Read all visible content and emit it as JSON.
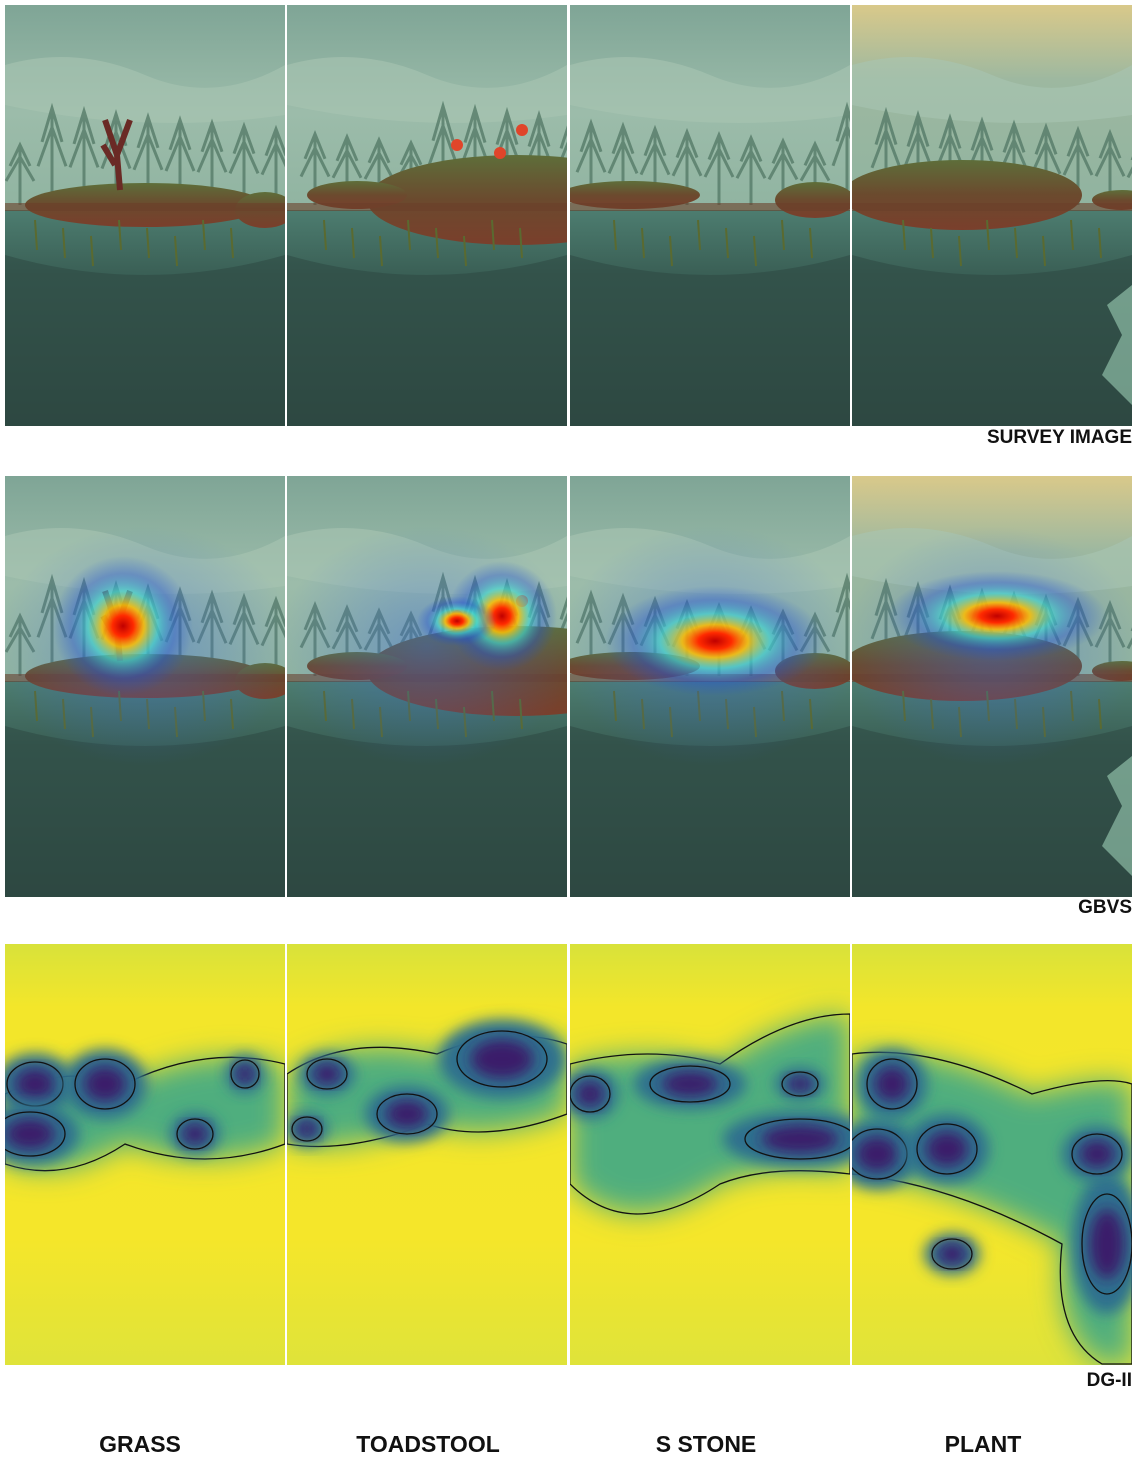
{
  "rows": [
    {
      "label": "SURVEY IMAGE"
    },
    {
      "label": "GBVS"
    },
    {
      "label": "DG-II"
    }
  ],
  "columns": [
    {
      "label": "GRASS"
    },
    {
      "label": "TOADSTOOL"
    },
    {
      "label": "S STONE"
    },
    {
      "label": "PLANT"
    }
  ]
}
